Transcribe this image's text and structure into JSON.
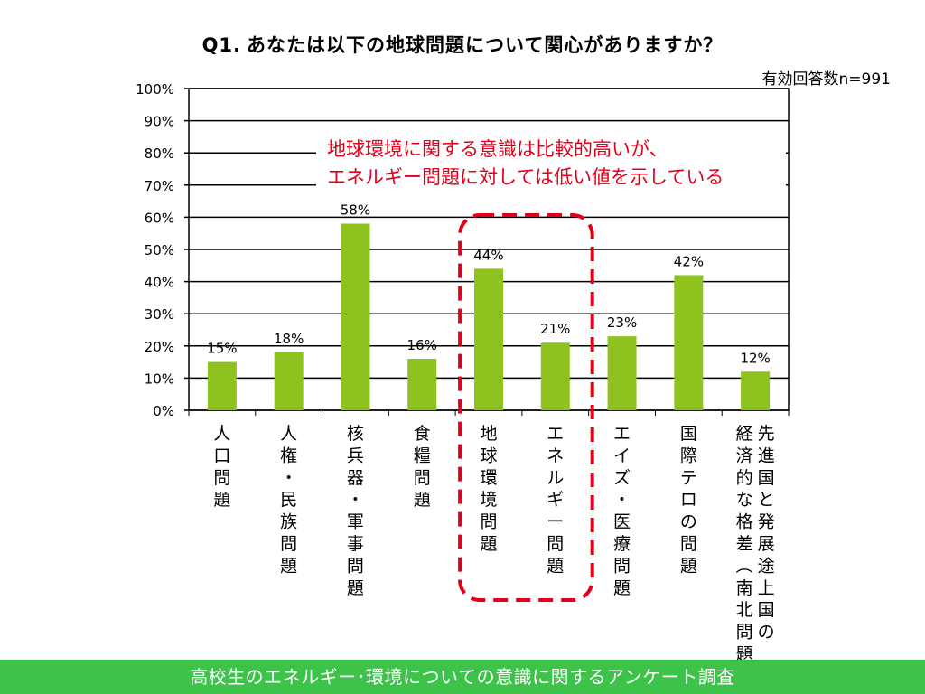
{
  "title": {
    "q": "Q1.",
    "text": "あなたは以下の地球問題について関心がありますか？"
  },
  "note": "有効回答数n=991",
  "footer": "高校生のエネルギー･環境についての意識に関するアンケート調査",
  "annotation": {
    "lines": [
      "地球環境に関する意識は比較的高いが、",
      "エネルギー問題に対しては低い値を示している"
    ],
    "color": "#e0001b",
    "highlight": [
      "地球環境問題",
      "エネルギー問題"
    ]
  },
  "colors": {
    "bar": "#8ec31f",
    "footer": "#3dc24a"
  },
  "chart_data": {
    "type": "bar",
    "categories": [
      "人口問題",
      "人権・民族問題",
      "核兵器・軍事問題",
      "食糧問題",
      "地球環境問題",
      "エネルギー問題",
      "エイズ・医療問題",
      "国際テロの問題",
      "先進国と発展途上国の経済的な格差（南北問題）"
    ],
    "category_lines": [
      [
        "人口問題"
      ],
      [
        "人権・民族問題"
      ],
      [
        "核兵器・軍事問題"
      ],
      [
        "食糧問題"
      ],
      [
        "地球環境問題"
      ],
      [
        "エネルギー問題"
      ],
      [
        "エイズ・医療問題"
      ],
      [
        "国際テロの問題"
      ],
      [
        "先進国と発展途上国の",
        "経済的な格差（南北問題）"
      ]
    ],
    "values": [
      15,
      18,
      58,
      16,
      44,
      21,
      23,
      42,
      12
    ],
    "data_labels": [
      "15%",
      "18%",
      "58%",
      "16%",
      "44%",
      "21%",
      "23%",
      "42%",
      "12%"
    ],
    "ylim": [
      0,
      100
    ],
    "yticks": [
      0,
      10,
      20,
      30,
      40,
      50,
      60,
      70,
      80,
      90,
      100
    ],
    "ytick_labels": [
      "0%",
      "10%",
      "20%",
      "30%",
      "40%",
      "50%",
      "60%",
      "70%",
      "80%",
      "90%",
      "100%"
    ],
    "grid": true,
    "legend": "none"
  }
}
